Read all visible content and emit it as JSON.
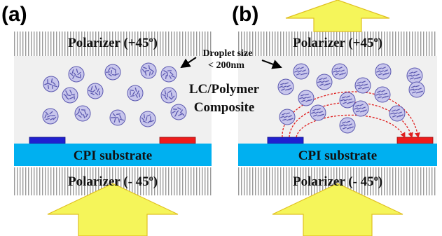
{
  "panels": [
    {
      "label": "(a)",
      "polarizer_top": {
        "text": "Polarizer (+45",
        "sup": "o",
        "close": ")"
      },
      "substrate": "CPI substrate",
      "polarizer_bottom": {
        "text": "Polarizer (- 45",
        "sup": "o",
        "close": ")"
      }
    },
    {
      "label": "(b)",
      "polarizer_top": {
        "text": "Polarizer (+45",
        "sup": "o",
        "close": ")"
      },
      "substrate": "CPI substrate",
      "polarizer_bottom": {
        "text": "Polarizer (- 45",
        "sup": "o",
        "close": ")"
      }
    }
  ],
  "annotations": {
    "droplet_line1": "Droplet size",
    "droplet_line2": "< 200nm",
    "composite_line1": "LC/Polymer",
    "composite_line2": "Composite"
  },
  "colors": {
    "substrate": "#00b0f0",
    "left_electrode": "#2020d0",
    "right_electrode": "#ee1c1c",
    "arrow_fill": "#f5f55a",
    "arrow_stroke": "#e0c020",
    "droplet_fill": "#c8c6ec",
    "droplet_stroke": "#5b58b0",
    "field_line": "#e02020",
    "cell_background": "#f0f0f0"
  }
}
